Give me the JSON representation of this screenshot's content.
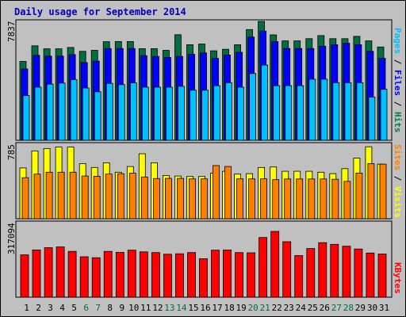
{
  "chart_data": {
    "type": "bar",
    "title": "Daily usage for September 2014",
    "categories": [
      "1",
      "2",
      "3",
      "4",
      "5",
      "6",
      "7",
      "8",
      "9",
      "10",
      "11",
      "12",
      "13",
      "14",
      "15",
      "16",
      "17",
      "18",
      "19",
      "20",
      "21",
      "22",
      "23",
      "24",
      "25",
      "26",
      "27",
      "28",
      "29",
      "30",
      "31"
    ],
    "weekend_days": [
      "6",
      "7",
      "13",
      "14",
      "20",
      "21",
      "27",
      "28"
    ],
    "panels": [
      {
        "ymax_label": "7837",
        "ymax": 7837,
        "right_label_parts": [
          {
            "text": "Pages",
            "color": "#00c0ff"
          },
          {
            "text": " / ",
            "color": "#000000"
          },
          {
            "text": "Files",
            "color": "#0000ff"
          },
          {
            "text": " / ",
            "color": "#000000"
          },
          {
            "text": "Hits",
            "color": "#008040"
          }
        ],
        "series": [
          {
            "name": "Hits",
            "color": "#006f3f",
            "values": [
              5200,
              6230,
              6030,
              6030,
              6120,
              5860,
              5930,
              6500,
              6510,
              6510,
              6040,
              6040,
              5930,
              6960,
              6300,
              6350,
              5900,
              6000,
              6300,
              7300,
              7837,
              6950,
              6550,
              6550,
              6700,
              6900,
              6700,
              6700,
              6850,
              6550,
              6150
            ]
          },
          {
            "name": "Files",
            "color": "#0000ff",
            "values": [
              4700,
              5600,
              5550,
              5550,
              5650,
              5120,
              5220,
              6050,
              6050,
              6050,
              5580,
              5530,
              5460,
              5530,
              5670,
              5760,
              5400,
              5620,
              5800,
              6800,
              7200,
              6500,
              6050,
              6050,
              6050,
              6200,
              6300,
              6400,
              6300,
              5860,
              5400
            ]
          },
          {
            "name": "Pages",
            "color": "#00c0ff",
            "values": [
              2950,
              3500,
              3700,
              3770,
              4000,
              3450,
              3200,
              3750,
              3670,
              3790,
              3500,
              3500,
              3500,
              3560,
              3300,
              3300,
              3600,
              3800,
              3500,
              4400,
              4960,
              3600,
              3600,
              3600,
              4030,
              4030,
              3800,
              3800,
              3800,
              2850,
              3360
            ]
          }
        ]
      },
      {
        "ymax_label": "785",
        "ymax": 785,
        "right_label_parts": [
          {
            "text": "Sites",
            "color": "#ff8000"
          },
          {
            "text": " / ",
            "color": "#000000"
          },
          {
            "text": "Visits",
            "color": "#ffff00"
          }
        ],
        "series": [
          {
            "name": "Visits",
            "color": "#ffff00",
            "values": [
              535,
              715,
              740,
              755,
              755,
              580,
              540,
              590,
              490,
              550,
              685,
              590,
              455,
              450,
              445,
              445,
              480,
              500,
              470,
              475,
              540,
              545,
              500,
              500,
              500,
              490,
              475,
              528,
              638,
              758,
              575
            ]
          },
          {
            "name": "Sites",
            "color": "#ff8000",
            "values": [
              433,
              470,
              490,
              490,
              490,
              450,
              448,
              471,
              474,
              480,
              440,
              423,
              425,
              425,
              420,
              420,
              560,
              550,
              420,
              420,
              420,
              412,
              419,
              419,
              419,
              419,
              416,
              393,
              481,
              580,
              575
            ]
          }
        ]
      },
      {
        "ymax_label": "317094",
        "ymax": 317094,
        "right_label_parts": [
          {
            "text": "KBytes",
            "color": "#ff0000"
          }
        ],
        "series": [
          {
            "name": "KBytes",
            "color": "#ff0000",
            "values": [
              180000,
              201000,
              211000,
              214000,
              195000,
              172000,
              168000,
              195000,
              191000,
              200000,
              193000,
              190000,
              183000,
              185000,
              190000,
              164000,
              200000,
              201000,
              190000,
              189000,
              254000,
              280000,
              236000,
              177000,
              207000,
              232000,
              225000,
              217000,
              205000,
              188000,
              184000
            ]
          }
        ]
      }
    ]
  }
}
